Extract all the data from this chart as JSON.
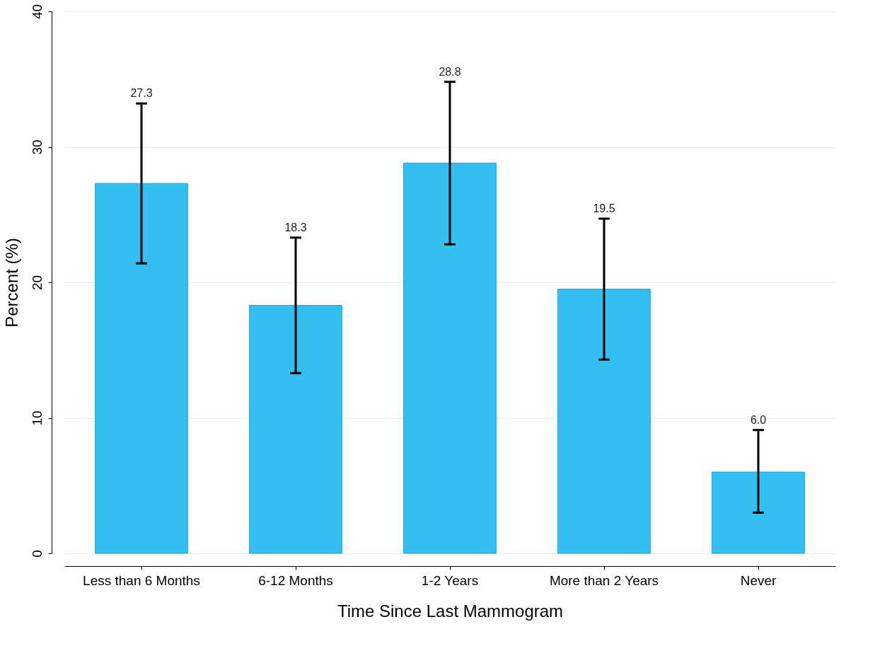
{
  "chart_data": {
    "type": "bar",
    "categories": [
      "Less than 6 Months",
      "6-12 Months",
      "1-2 Years",
      "More than 2 Years",
      "Never"
    ],
    "values": [
      27.3,
      18.3,
      28.8,
      19.5,
      6.0
    ],
    "errors": [
      [
        21.4,
        33.2
      ],
      [
        13.3,
        23.3
      ],
      [
        22.8,
        34.8
      ],
      [
        14.3,
        24.7
      ],
      [
        3.0,
        9.1
      ]
    ],
    "color": "#33bff2",
    "xlabel": "Time Since Last Mammogram",
    "ylabel": "Percent (%)",
    "ylim": [
      0,
      40
    ],
    "yticks": [
      0,
      10,
      20,
      30,
      40
    ],
    "annotations": [
      {
        "text": "27.3",
        "x": "Less than 6 Months",
        "y": 33.2
      },
      {
        "text": "18.3",
        "x": "6-12 Months",
        "y": 23.3
      },
      {
        "text": "28.8",
        "x": "1-2 Years",
        "y": 34.8
      },
      {
        "text": "19.5",
        "x": "More than 2 Years",
        "y": 24.7
      },
      {
        "text": "6.0",
        "x": "Never",
        "y": 9.1
      }
    ],
    "grid": "y"
  }
}
